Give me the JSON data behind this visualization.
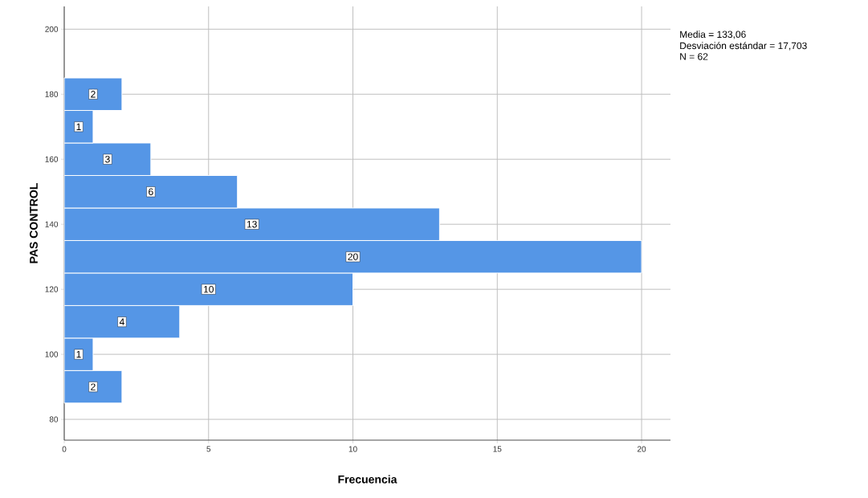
{
  "chart_data": {
    "type": "histogram",
    "orientation": "horizontal",
    "xlabel": "Frecuencia",
    "ylabel": "PAS CONTROL",
    "bins": [
      85,
      95,
      105,
      115,
      125,
      135,
      145,
      155,
      165,
      175,
      185
    ],
    "values": [
      2,
      1,
      4,
      10,
      20,
      13,
      6,
      3,
      1,
      2
    ],
    "color": "#5596e6",
    "data_labels": true,
    "grid": true,
    "xlim": [
      0,
      21
    ],
    "ylim": [
      73.6,
      207
    ],
    "xticks": [
      0,
      5,
      10,
      15,
      20
    ],
    "yticks": [
      80,
      100,
      120,
      140,
      160,
      180,
      200
    ],
    "annotations": [
      "Media = 133,06",
      "Desviación estándar = 17,703",
      "N = 62"
    ]
  }
}
